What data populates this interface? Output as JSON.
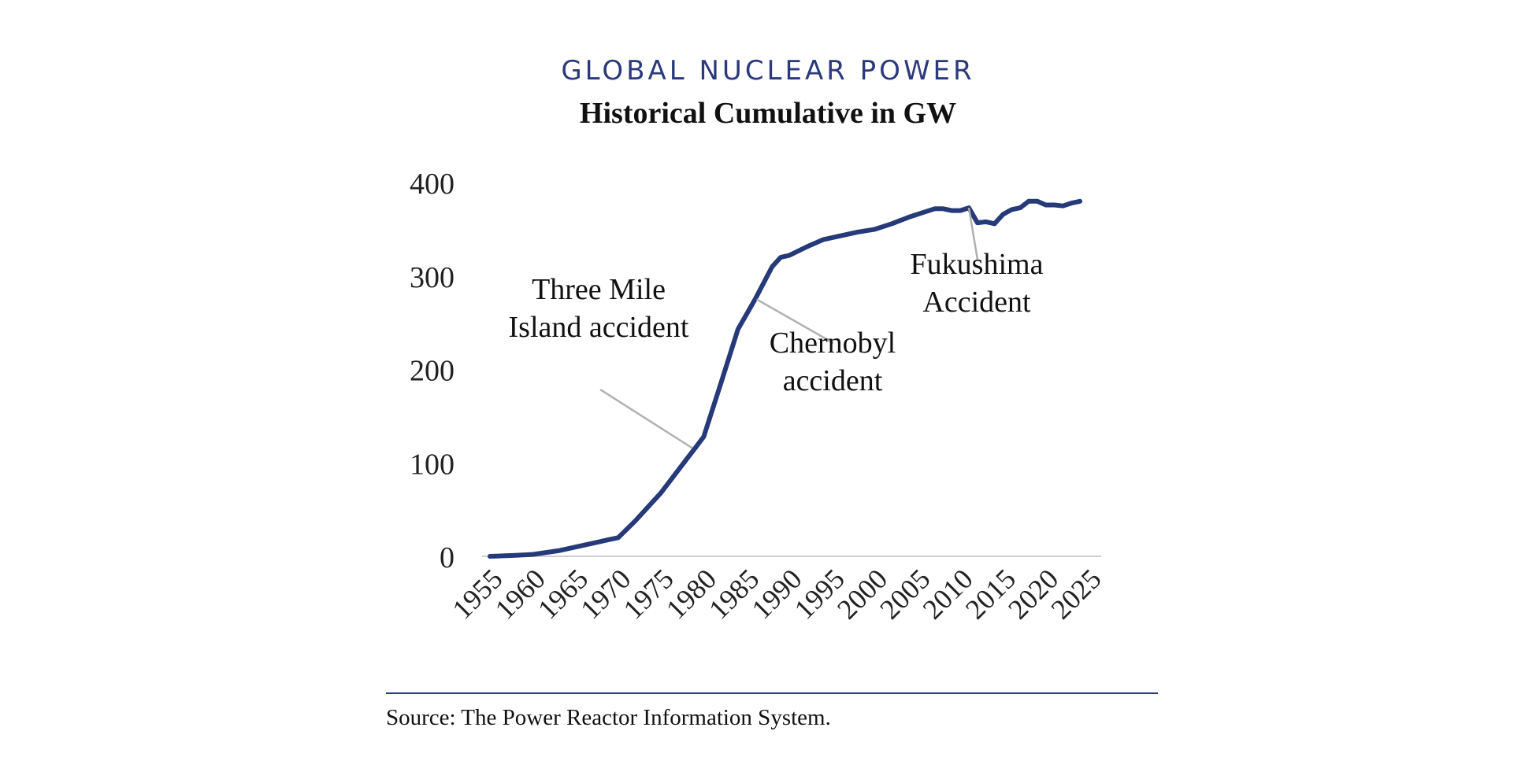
{
  "chart_data": {
    "type": "line",
    "title": "GLOBAL NUCLEAR POWER",
    "subtitle": "Historical Cumulative in GW",
    "xlabel": "",
    "ylabel": "",
    "xlim": [
      1955,
      2025
    ],
    "ylim": [
      0,
      400
    ],
    "x_ticks": [
      "1955",
      "1960",
      "1965",
      "1970",
      "1975",
      "1980",
      "1985",
      "1990",
      "1995",
      "2000",
      "2005",
      "2010",
      "2015",
      "2020",
      "2025"
    ],
    "y_ticks": [
      "0",
      "100",
      "200",
      "300",
      "400"
    ],
    "grid": false,
    "legend": "none",
    "series": [
      {
        "color": "#263a7a",
        "x": [
          1955,
          1958,
          1960,
          1963,
          1966,
          1969,
          1970,
          1972,
          1975,
          1978,
          1979,
          1980,
          1982,
          1984,
          1986,
          1988,
          1989,
          1990,
          1992,
          1994,
          1996,
          1998,
          2000,
          2002,
          2004,
          2006,
          2007,
          2008,
          2009,
          2010,
          2011,
          2012,
          2013,
          2014,
          2015,
          2016,
          2017,
          2018,
          2019,
          2020,
          2021,
          2022,
          2023,
          2024
        ],
        "y": [
          0,
          1,
          2,
          6,
          12,
          18,
          20,
          38,
          68,
          104,
          116,
          128,
          185,
          243,
          275,
          310,
          320,
          322,
          331,
          339,
          343,
          347,
          350,
          356,
          363,
          369,
          372,
          372,
          370,
          370,
          373,
          357,
          358,
          356,
          366,
          371,
          373,
          380,
          380,
          376,
          376,
          375,
          378,
          380
        ]
      }
    ],
    "annotations": [
      {
        "text_lines": [
          "Three Mile",
          "Island accident"
        ],
        "x": 1979
      },
      {
        "text_lines": [
          "Chernobyl",
          "accident"
        ],
        "x": 1986
      },
      {
        "text_lines": [
          "Fukushima",
          "Accident"
        ],
        "x": 2011
      }
    ]
  },
  "source": "Source: The Power Reactor Information System."
}
